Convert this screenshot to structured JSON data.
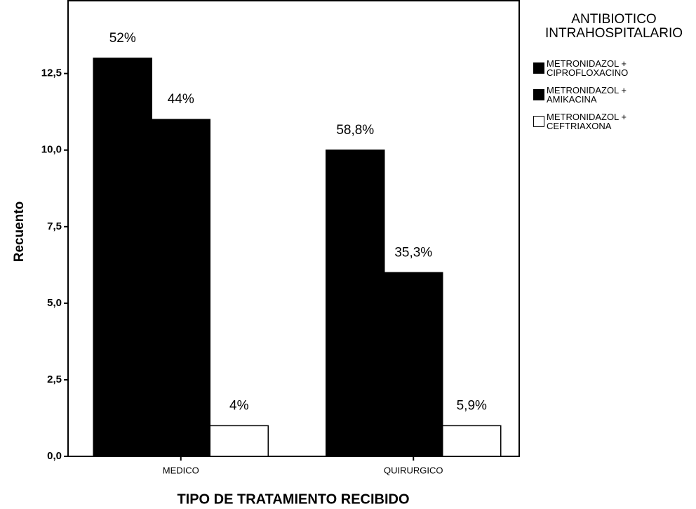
{
  "chart_data": {
    "type": "bar",
    "x_label": "TIPO DE TRATAMIENTO RECIBIDO",
    "y_label": "Recuento",
    "legend_title": "ANTIBIOTICO INTRAHOSPITALARIO",
    "legend": "right",
    "categories": [
      "MEDICO",
      "QUIRURGICO"
    ],
    "series": [
      {
        "name": "METRONIDAZOL + CIPROFLOXACINO",
        "color": "#000000",
        "values": [
          13,
          10
        ],
        "labels": [
          "52%",
          "58,8%"
        ]
      },
      {
        "name": "METRONIDAZOL + AMIKACINA",
        "color": "#000000",
        "values": [
          11,
          6
        ],
        "labels": [
          "44%",
          "35,3%"
        ]
      },
      {
        "name": "METRONIDAZOL + CEFTRIAXONA",
        "color": "#ffffff",
        "values": [
          1,
          1
        ],
        "labels": [
          "4%",
          "5,9%"
        ]
      }
    ],
    "ylim": [
      0,
      14.9
    ],
    "yticks": [
      {
        "value": 0,
        "label": "0,0"
      },
      {
        "value": 2.5,
        "label": "2,5"
      },
      {
        "value": 5,
        "label": "5,0"
      },
      {
        "value": 7.5,
        "label": "7,5"
      },
      {
        "value": 10,
        "label": "10,0"
      },
      {
        "value": 12.5,
        "label": "12,5"
      }
    ]
  }
}
